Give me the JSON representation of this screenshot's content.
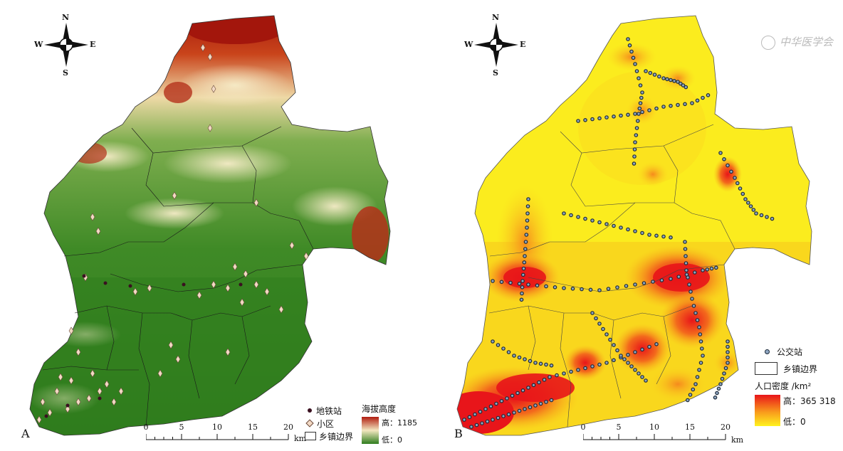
{
  "panels": {
    "a": {
      "letter": "A",
      "compass": {
        "n": "N",
        "s": "S",
        "w": "W",
        "e": "E"
      },
      "legend": {
        "metro_label": "地铁站",
        "community_label": "小区",
        "boundary_label": "乡镇边界",
        "elevation_title": "海拔高度",
        "elevation_high": "高：1185",
        "elevation_low": "低：0",
        "colors": {
          "high": "#b01c10",
          "mid": "#f3e7c0",
          "low": "#2f7d1e"
        }
      },
      "scale": {
        "ticks": [
          "0",
          "5",
          "10",
          "15",
          "20"
        ],
        "unit": "km"
      }
    },
    "b": {
      "letter": "B",
      "compass": {
        "n": "N",
        "s": "S",
        "w": "W",
        "e": "E"
      },
      "legend": {
        "bus_label": "公交站",
        "boundary_label": "乡镇边界",
        "density_title": "人口密度 /km²",
        "density_high": "高：365 318",
        "density_low": "低：0",
        "colors": {
          "high": "#e8151a",
          "mid": "#f99a1c",
          "low": "#fff21e"
        }
      },
      "scale": {
        "ticks": [
          "0",
          "5",
          "10",
          "15",
          "20"
        ],
        "unit": "km"
      },
      "watermark": "中华医学会"
    }
  }
}
